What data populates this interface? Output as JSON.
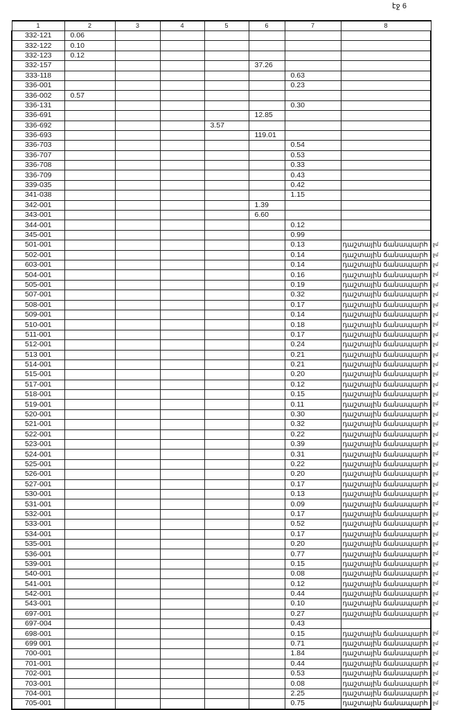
{
  "page_label": "էջ 6",
  "headers": [
    "1",
    "2",
    "3",
    "4",
    "5",
    "6",
    "7",
    "8"
  ],
  "note_text": "դաշտային ճանապարհ",
  "note_suffix": "ջմ",
  "rows": [
    {
      "id": "332-121",
      "c2": "0.06"
    },
    {
      "id": "332-122",
      "c2": "0.10"
    },
    {
      "id": "332-123",
      "c2": "0.12"
    },
    {
      "id": "332-157",
      "c6": "37.26"
    },
    {
      "id": "333-118",
      "c7": "0.63"
    },
    {
      "id": "336-001",
      "c7": "0.23"
    },
    {
      "id": "336-002",
      "c2": "0.57"
    },
    {
      "id": "336-131",
      "c7": "0.30"
    },
    {
      "id": "336-691",
      "c6": "12.85"
    },
    {
      "id": "336-692",
      "c5": "3.57"
    },
    {
      "id": "336-693",
      "c6": "119.01"
    },
    {
      "id": "336-703",
      "c7": "0.54"
    },
    {
      "id": "336-707",
      "c7": "0.53"
    },
    {
      "id": "336-708",
      "c7": "0.33"
    },
    {
      "id": "336-709",
      "c7": "0.43"
    },
    {
      "id": "339-035",
      "c7": "0.42"
    },
    {
      "id": "341-038",
      "c7": "1.15"
    },
    {
      "id": "342-001",
      "c6": "1.39"
    },
    {
      "id": "343-001",
      "c6": "6.60"
    },
    {
      "id": "344-001",
      "c7": "0.12"
    },
    {
      "id": "345-001",
      "c7": "0.99"
    },
    {
      "id": "501-001",
      "c7": "0.13",
      "note": true
    },
    {
      "id": "502-001",
      "c7": "0.14",
      "note": true
    },
    {
      "id": "603-001",
      "c7": "0.14",
      "note": true
    },
    {
      "id": "504-001",
      "c7": "0.16",
      "note": true
    },
    {
      "id": "505-001",
      "c7": "0.19",
      "note": true
    },
    {
      "id": "507-001",
      "c7": "0.32",
      "note": true
    },
    {
      "id": "508-001",
      "c7": "0.17",
      "note": true
    },
    {
      "id": "509-001",
      "c7": "0.14",
      "note": true
    },
    {
      "id": "510-001",
      "c7": "0.18",
      "note": true
    },
    {
      "id": "511-001",
      "c7": "0.17",
      "note": true
    },
    {
      "id": "512-001",
      "c7": "0.24",
      "note": true
    },
    {
      "id": "513 001",
      "c7": "0.21",
      "note": true
    },
    {
      "id": "514-001",
      "c7": "0.21",
      "note": true
    },
    {
      "id": "515-001",
      "c7": "0.20",
      "note": true
    },
    {
      "id": "517-001",
      "c7": "0.12",
      "note": true
    },
    {
      "id": "518-001",
      "c7": "0.15",
      "note": true
    },
    {
      "id": "519-001",
      "c7": "0.11",
      "note": true
    },
    {
      "id": "520-001",
      "c7": "0.30",
      "note": true
    },
    {
      "id": "521-001",
      "c7": "0.32",
      "note": true
    },
    {
      "id": "522-001",
      "c7": "0.22",
      "note": true
    },
    {
      "id": "523-001",
      "c7": "0.39",
      "note": true
    },
    {
      "id": "524-001",
      "c7": "0.31",
      "note": true
    },
    {
      "id": "525-001",
      "c7": "0.22",
      "note": true
    },
    {
      "id": "526-001",
      "c7": "0.20",
      "note": true
    },
    {
      "id": "527-001",
      "c7": "0.17",
      "note": true
    },
    {
      "id": "530-001",
      "c7": "0.13",
      "note": true
    },
    {
      "id": "531-001",
      "c7": "0.09",
      "note": true
    },
    {
      "id": "532-001",
      "c7": "0.17",
      "note": true
    },
    {
      "id": "533-001",
      "c7": "0.52",
      "note": true
    },
    {
      "id": "534-001",
      "c7": "0.17",
      "note": true
    },
    {
      "id": "535-001",
      "c7": "0.20",
      "note": true
    },
    {
      "id": "536-001",
      "c7": "0.77",
      "note": true
    },
    {
      "id": "539-001",
      "c7": "0.15",
      "note": true
    },
    {
      "id": "540-001",
      "c7": "0.08",
      "note": true
    },
    {
      "id": "541-001",
      "c7": "0.12",
      "note": true
    },
    {
      "id": "542-001",
      "c7": "0.44",
      "note": true
    },
    {
      "id": "543-001",
      "c7": "0.10",
      "note": true
    },
    {
      "id": "697-001",
      "c7": "0.27",
      "note": true
    },
    {
      "id": "697-004",
      "c7": "0.43"
    },
    {
      "id": "698-001",
      "c7": "0.15",
      "note": true
    },
    {
      "id": "699 001",
      "c7": "0.71",
      "note": true
    },
    {
      "id": "700-001",
      "c7": "1.84",
      "note": true
    },
    {
      "id": "701-001",
      "c7": "0.44",
      "note": true
    },
    {
      "id": "702-001",
      "c7": "0.53",
      "note": true
    },
    {
      "id": "703-001",
      "c7": "0.08",
      "note": true
    },
    {
      "id": "704-001",
      "c7": "2.25",
      "note": true
    },
    {
      "id": "705-001",
      "c7": "0.75",
      "note": true
    }
  ]
}
